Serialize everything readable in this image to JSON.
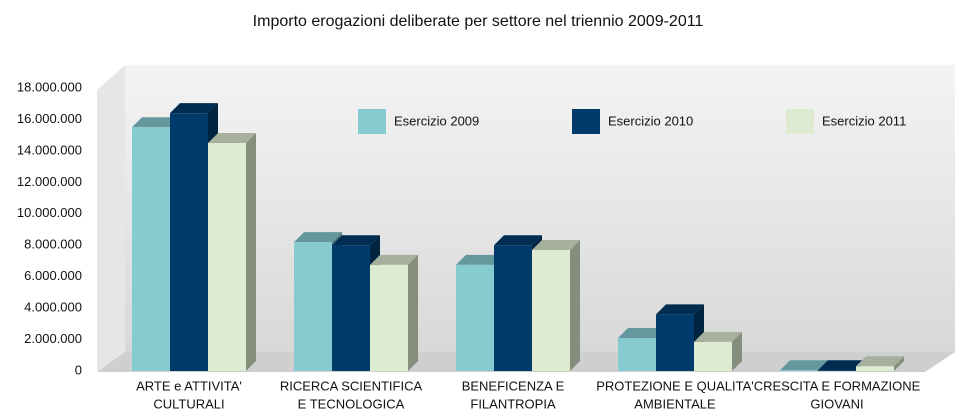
{
  "chart_data": {
    "type": "bar3d",
    "title": "Importo erogazioni deliberate per settore nel triennio 2009-2011",
    "categories": [
      [
        "ARTE e ATTIVITA'",
        "CULTURALI"
      ],
      [
        "RICERCA SCIENTIFICA",
        "E TECNOLOGICA"
      ],
      [
        "BENEFICENZA E",
        "FILANTROPIA"
      ],
      [
        "PROTEZIONE E QUALITA'",
        "AMBIENTALE"
      ],
      [
        "CRESCITA E FORMAZIONE",
        "GIOVANI"
      ]
    ],
    "series": [
      {
        "name": "Esercizio 2009",
        "color": "#86cbd0",
        "values": [
          15500000,
          8200000,
          6750000,
          2100000,
          50000
        ]
      },
      {
        "name": "Esercizio 2010",
        "color": "#003a6b",
        "values": [
          16400000,
          8000000,
          8000000,
          3600000,
          50000
        ]
      },
      {
        "name": "Esercizio 2011",
        "color": "#ddebd1",
        "values": [
          14500000,
          6750000,
          7700000,
          1850000,
          300000
        ]
      }
    ],
    "ylim": [
      0,
      18000000
    ],
    "yticks": [
      0,
      {
        "value": 2000000,
        "label": "2.000.000"
      },
      {
        "value": 4000000,
        "label": "4.000.000"
      },
      {
        "value": 6000000,
        "label": "6.000.000"
      },
      {
        "value": 8000000,
        "label": "8.000.000"
      },
      {
        "value": 10000000,
        "label": "10.000.000"
      },
      {
        "value": 12000000,
        "label": "12.000.000"
      },
      {
        "value": 14000000,
        "label": "14.000.000"
      },
      {
        "value": 16000000,
        "label": "16.000.000"
      },
      {
        "value": 18000000,
        "label": "18.000.000"
      }
    ],
    "grid": false,
    "legend": "top"
  }
}
